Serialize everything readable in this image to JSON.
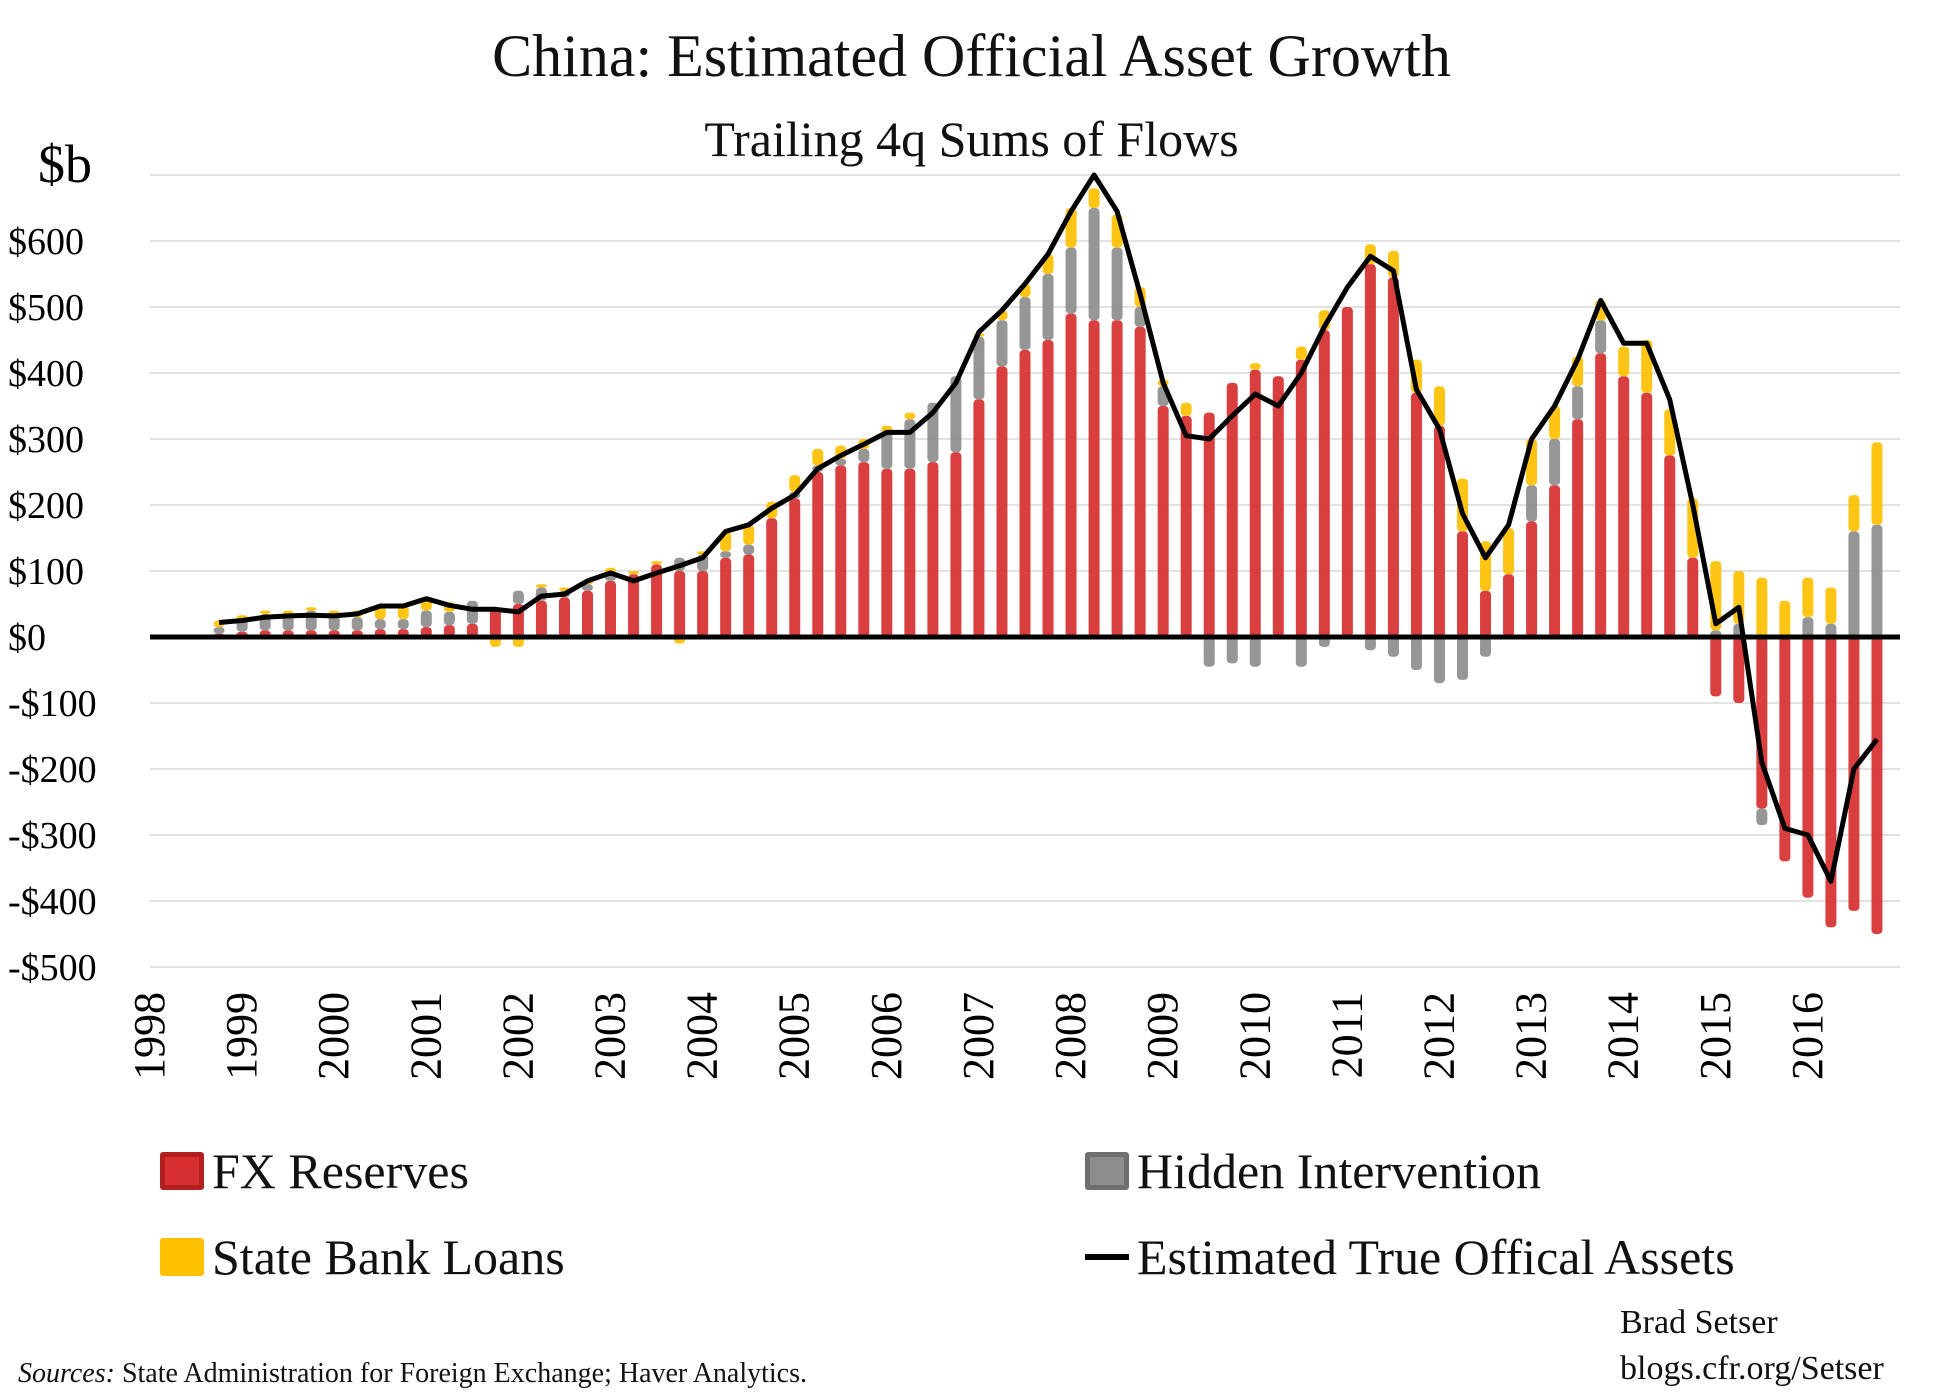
{
  "chart_data": {
    "type": "bar",
    "title": "China: Estimated Official Asset Growth",
    "subtitle": "Trailing 4q Sums of Flows",
    "ylabel": "$b",
    "ylim": [
      -500,
      700
    ],
    "yticks": [
      -500,
      -400,
      -300,
      -200,
      -100,
      0,
      100,
      200,
      300,
      400,
      500,
      600
    ],
    "ytick_labels": [
      "-$500",
      "-$400",
      "-$300",
      "-$200",
      "-$100",
      "$0",
      "$100",
      "$200",
      "$300",
      "$400",
      "$500",
      "$600"
    ],
    "xlim": [
      1998,
      2017
    ],
    "years": [
      "1998",
      "1999",
      "2000",
      "2001",
      "2002",
      "2003",
      "2004",
      "2005",
      "2006",
      "2007",
      "2008",
      "2009",
      "2010",
      "2011",
      "2012",
      "2013",
      "2014",
      "2015",
      "2016"
    ],
    "grid": true,
    "legend_placement": "bottom",
    "stacked": true,
    "x": [
      1998.75,
      1999.0,
      1999.25,
      1999.5,
      1999.75,
      2000.0,
      2000.25,
      2000.5,
      2000.75,
      2001.0,
      2001.25,
      2001.5,
      2001.75,
      2002.0,
      2002.25,
      2002.5,
      2002.75,
      2003.0,
      2003.25,
      2003.5,
      2003.75,
      2004.0,
      2004.25,
      2004.5,
      2004.75,
      2005.0,
      2005.25,
      2005.5,
      2005.75,
      2006.0,
      2006.25,
      2006.5,
      2006.75,
      2007.0,
      2007.25,
      2007.5,
      2007.75,
      2008.0,
      2008.25,
      2008.5,
      2008.75,
      2009.0,
      2009.25,
      2009.5,
      2009.75,
      2010.0,
      2010.25,
      2010.5,
      2010.75,
      2011.0,
      2011.25,
      2011.5,
      2011.75,
      2012.0,
      2012.25,
      2012.5,
      2012.75,
      2013.0,
      2013.25,
      2013.5,
      2013.75,
      2014.0,
      2014.25,
      2014.5,
      2014.75,
      2015.0,
      2015.25,
      2015.5,
      2015.75,
      2016.0,
      2016.25,
      2016.5,
      2016.75
    ],
    "series": [
      {
        "name": "FX Reserves",
        "color": "#d72f2f",
        "values": [
          5,
          8,
          10,
          10,
          10,
          10,
          10,
          12,
          12,
          15,
          18,
          20,
          45,
          50,
          55,
          60,
          70,
          85,
          95,
          110,
          100,
          100,
          120,
          125,
          180,
          210,
          250,
          260,
          265,
          255,
          255,
          265,
          280,
          360,
          410,
          435,
          450,
          490,
          480,
          480,
          470,
          350,
          335,
          340,
          385,
          405,
          395,
          420,
          465,
          500,
          565,
          545,
          370,
          320,
          160,
          70,
          95,
          175,
          230,
          330,
          430,
          395,
          370,
          275,
          120,
          -90,
          -100,
          -260,
          -340,
          -395,
          -440,
          -415,
          -450
        ]
      },
      {
        "name": "Hidden Intervention",
        "color": "#8d8d8d",
        "values": [
          10,
          20,
          25,
          25,
          30,
          25,
          20,
          15,
          15,
          25,
          20,
          35,
          0,
          20,
          20,
          10,
          10,
          10,
          0,
          0,
          20,
          25,
          10,
          15,
          0,
          10,
          10,
          10,
          20,
          55,
          75,
          90,
          115,
          95,
          70,
          80,
          100,
          100,
          170,
          110,
          30,
          30,
          0,
          -45,
          -40,
          -45,
          0,
          -45,
          -15,
          0,
          -20,
          -30,
          -50,
          -70,
          -65,
          -30,
          0,
          55,
          70,
          50,
          50,
          0,
          0,
          0,
          0,
          10,
          20,
          -25,
          0,
          30,
          20,
          160,
          170
        ]
      },
      {
        "name": "State Bank Loans",
        "color": "#ffc000",
        "values": [
          10,
          5,
          5,
          5,
          5,
          5,
          10,
          20,
          20,
          20,
          15,
          0,
          -15,
          -15,
          5,
          5,
          5,
          10,
          5,
          5,
          -10,
          5,
          30,
          30,
          25,
          25,
          25,
          20,
          15,
          10,
          10,
          0,
          0,
          5,
          15,
          20,
          30,
          60,
          30,
          50,
          30,
          10,
          20,
          0,
          0,
          10,
          0,
          20,
          30,
          0,
          30,
          40,
          50,
          60,
          80,
          75,
          70,
          70,
          50,
          45,
          30,
          45,
          80,
          70,
          90,
          105,
          80,
          90,
          55,
          60,
          55,
          55,
          125
        ]
      },
      {
        "name": "Estimated True Offical Assets",
        "type": "line",
        "color": "#000000",
        "values": [
          22,
          25,
          30,
          32,
          33,
          32,
          35,
          47,
          47,
          58,
          48,
          42,
          42,
          38,
          62,
          65,
          85,
          97,
          85,
          97,
          108,
          120,
          160,
          170,
          195,
          215,
          255,
          275,
          292,
          310,
          310,
          340,
          385,
          462,
          495,
          535,
          580,
          645,
          700,
          645,
          520,
          385,
          305,
          300,
          335,
          368,
          350,
          400,
          470,
          530,
          577,
          555,
          375,
          315,
          187,
          120,
          170,
          300,
          350,
          420,
          510,
          445,
          445,
          360,
          200,
          20,
          45,
          -190,
          -290,
          -300,
          -370,
          -200,
          -155
        ]
      }
    ]
  },
  "legend": [
    {
      "label": "FX Reserves",
      "swatch": "red"
    },
    {
      "label": "Hidden Intervention",
      "swatch": "gray"
    },
    {
      "label": "State Bank Loans",
      "swatch": "yellow"
    },
    {
      "label": "Estimated True Offical Assets",
      "swatch": "line"
    }
  ],
  "credit": {
    "author": "Brad Setser",
    "site": "blogs.cfr.org/Setser"
  },
  "sources": {
    "prefix": "Sources:",
    "text": " State Administration for Foreign Exchange; Haver Analytics."
  }
}
